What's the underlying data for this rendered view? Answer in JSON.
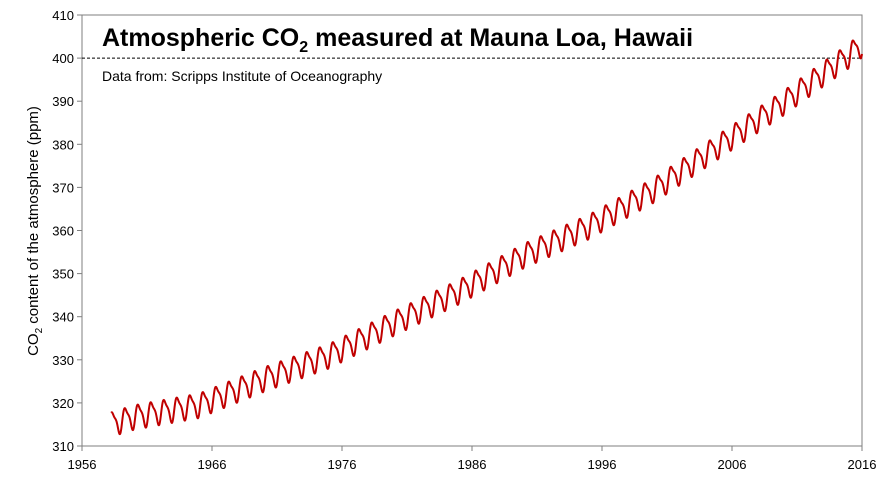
{
  "chart_data": {
    "type": "line",
    "title": {
      "prefix": "Atmospheric CO",
      "subscript": "2",
      "suffix": " measured at Mauna Loa, Hawaii"
    },
    "subtitle": "Data from: Scripps Institute of Oceanography",
    "ylabel": {
      "prefix": "CO",
      "subscript": "2",
      "suffix": " content of the atmosphere (ppm)"
    },
    "xlim": [
      1956,
      2016
    ],
    "ylim": [
      310,
      410
    ],
    "x_ticks": [
      "1956",
      "1966",
      "1976",
      "1986",
      "1996",
      "2006",
      "2016"
    ],
    "y_ticks": [
      "310",
      "320",
      "330",
      "340",
      "350",
      "360",
      "370",
      "380",
      "390",
      "400",
      "410"
    ],
    "reference_line": {
      "y": 400,
      "style": "dashed"
    },
    "grid": false,
    "line_color": "#c00000",
    "series": [
      {
        "x_start": 1958.25,
        "x_end": 2016.0,
        "seasonal_amplitude_ppm": 3.0,
        "annual_trend": [
          {
            "year": 1958,
            "mean": 315.0
          },
          {
            "year": 1960,
            "mean": 316.9
          },
          {
            "year": 1965,
            "mean": 319.6
          },
          {
            "year": 1970,
            "mean": 325.7
          },
          {
            "year": 1975,
            "mean": 331.1
          },
          {
            "year": 1980,
            "mean": 338.7
          },
          {
            "year": 1985,
            "mean": 346.0
          },
          {
            "year": 1990,
            "mean": 354.4
          },
          {
            "year": 1995,
            "mean": 361.1
          },
          {
            "year": 2000,
            "mean": 369.6
          },
          {
            "year": 2005,
            "mean": 379.8
          },
          {
            "year": 2010,
            "mean": 389.9
          },
          {
            "year": 2013,
            "mean": 396.5
          },
          {
            "year": 2015,
            "mean": 400.8
          },
          {
            "year": 2016,
            "mean": 403.3
          }
        ],
        "peak_2015": 404.0,
        "low_1958": 312.5
      }
    ]
  }
}
